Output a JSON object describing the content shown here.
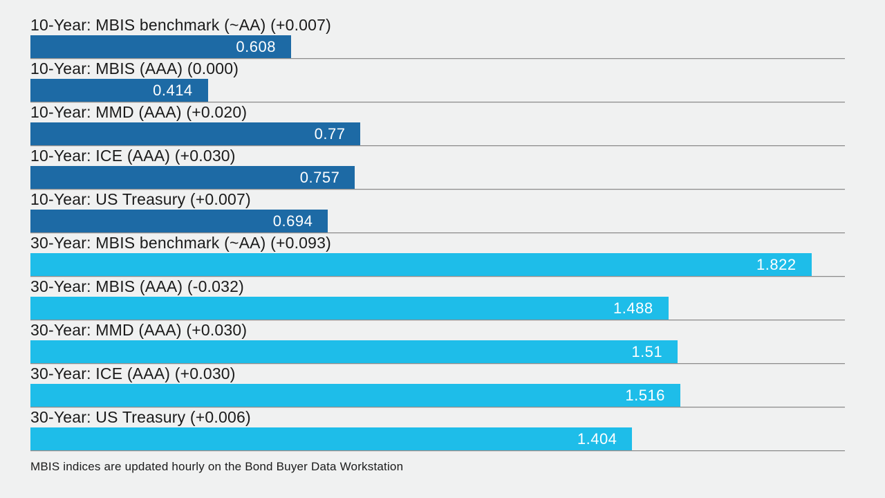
{
  "page": {
    "background_color": "#f0f1f1",
    "text_color": "#1a1a1a"
  },
  "chart_data": {
    "type": "bar",
    "orientation": "horizontal",
    "grid": false,
    "xlim": [
      0,
      1.9
    ],
    "value_labels_inside_bars": true,
    "footnote": "MBIS indices are updated hourly on the Bond Buyer Data Workstation",
    "groups": {
      "10-Year": {
        "color": "#1d6aa5"
      },
      "30-Year": {
        "color": "#1ebde9"
      }
    },
    "bars": [
      {
        "label": "10-Year: MBIS benchmark (~AA) (+0.007)",
        "group": "10-Year",
        "value": 0.608,
        "display_value": "0.608",
        "change": "+0.007",
        "color": "#1d6aa5"
      },
      {
        "label": "10-Year: MBIS (AAA) (0.000)",
        "group": "10-Year",
        "value": 0.414,
        "display_value": "0.414",
        "change": "0.000",
        "color": "#1d6aa5"
      },
      {
        "label": "10-Year: MMD (AAA) (+0.020)",
        "group": "10-Year",
        "value": 0.77,
        "display_value": "0.77",
        "change": "+0.020",
        "color": "#1d6aa5"
      },
      {
        "label": "10-Year: ICE (AAA) (+0.030)",
        "group": "10-Year",
        "value": 0.757,
        "display_value": "0.757",
        "change": "+0.030",
        "color": "#1d6aa5"
      },
      {
        "label": "10-Year: US Treasury (+0.007)",
        "group": "10-Year",
        "value": 0.694,
        "display_value": "0.694",
        "change": "+0.007",
        "color": "#1d6aa5"
      },
      {
        "label": "30-Year: MBIS benchmark (~AA) (+0.093)",
        "group": "30-Year",
        "value": 1.822,
        "display_value": "1.822",
        "change": "+0.093",
        "color": "#1ebde9"
      },
      {
        "label": "30-Year: MBIS (AAA) (-0.032)",
        "group": "30-Year",
        "value": 1.488,
        "display_value": "1.488",
        "change": "-0.032",
        "color": "#1ebde9"
      },
      {
        "label": "30-Year: MMD (AAA) (+0.030)",
        "group": "30-Year",
        "value": 1.51,
        "display_value": "1.51",
        "change": "+0.030",
        "color": "#1ebde9"
      },
      {
        "label": "30-Year: ICE (AAA) (+0.030)",
        "group": "30-Year",
        "value": 1.516,
        "display_value": "1.516",
        "change": "+0.030",
        "color": "#1ebde9"
      },
      {
        "label": "30-Year: US Treasury (+0.006)",
        "group": "30-Year",
        "value": 1.404,
        "display_value": "1.404",
        "change": "+0.006",
        "color": "#1ebde9"
      }
    ]
  }
}
